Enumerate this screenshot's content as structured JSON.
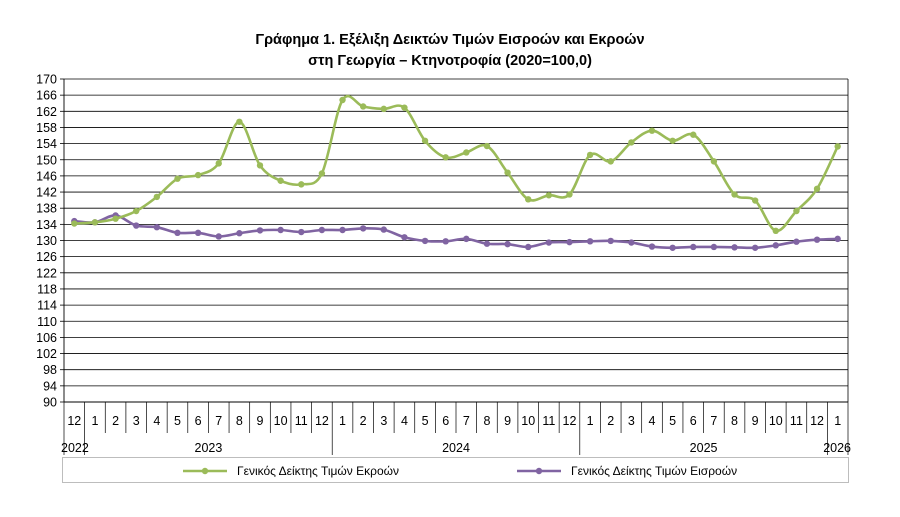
{
  "title": {
    "line1": "Γράφημα 1. Εξέλιξη Δεικτών Τιμών Εισροών και Εκροών",
    "line2": "στη Γεωργία – Κτηνοτροφία (2020=100,0)"
  },
  "chart_data": {
    "type": "line",
    "ylim": [
      90,
      170
    ],
    "yticks": [
      90,
      94,
      98,
      102,
      106,
      110,
      114,
      118,
      122,
      126,
      130,
      134,
      138,
      142,
      146,
      150,
      154,
      158,
      162,
      166,
      170
    ],
    "grid": true,
    "legend_position": "bottom",
    "months": [
      "12",
      "1",
      "2",
      "3",
      "4",
      "5",
      "6",
      "7",
      "8",
      "9",
      "10",
      "11",
      "12",
      "1",
      "2",
      "3",
      "4",
      "5",
      "6",
      "7",
      "8",
      "9",
      "10",
      "11",
      "12",
      "1",
      "2",
      "3",
      "4",
      "5",
      "6",
      "7",
      "8",
      "9",
      "10",
      "11",
      "12",
      "1"
    ],
    "years": [
      {
        "label": "2022",
        "start": 0,
        "end": 0,
        "align": "left"
      },
      {
        "label": "2023",
        "start": 1,
        "end": 12,
        "align": "center"
      },
      {
        "label": "2024",
        "start": 13,
        "end": 24,
        "align": "center"
      },
      {
        "label": "2025",
        "start": 25,
        "end": 36,
        "align": "center"
      },
      {
        "label": "2026",
        "start": 37,
        "end": 37,
        "align": "right"
      }
    ],
    "series": [
      {
        "name": "Γενικός Δείκτης Τιμών Εκροών",
        "color": "#9bbb59",
        "values": [
          134.2,
          134.5,
          135.4,
          137.3,
          140.8,
          145.3,
          146.2,
          149.1,
          159.4,
          148.6,
          144.8,
          143.9,
          146.6,
          164.8,
          163.2,
          162.6,
          162.9,
          154.7,
          150.6,
          151.8,
          153.4,
          146.8,
          140.2,
          141.2,
          141.4,
          151.2,
          149.6,
          154.3,
          157.2,
          154.7,
          156.2,
          149.6,
          141.4,
          139.9,
          132.4,
          137.3,
          142.8,
          153.3
        ]
      },
      {
        "name": "Γενικός Δείκτης Τιμών Εισροών",
        "color": "#8064a2",
        "values": [
          134.8,
          134.5,
          136.2,
          133.7,
          133.3,
          131.9,
          131.9,
          131.0,
          131.8,
          132.5,
          132.6,
          132.1,
          132.6,
          132.6,
          133.0,
          132.7,
          130.8,
          129.9,
          129.8,
          130.4,
          129.2,
          129.1,
          128.4,
          129.5,
          129.6,
          129.8,
          129.9,
          129.5,
          128.5,
          128.2,
          128.4,
          128.4,
          128.3,
          128.2,
          128.8,
          129.7,
          130.2,
          130.4
        ]
      }
    ]
  }
}
